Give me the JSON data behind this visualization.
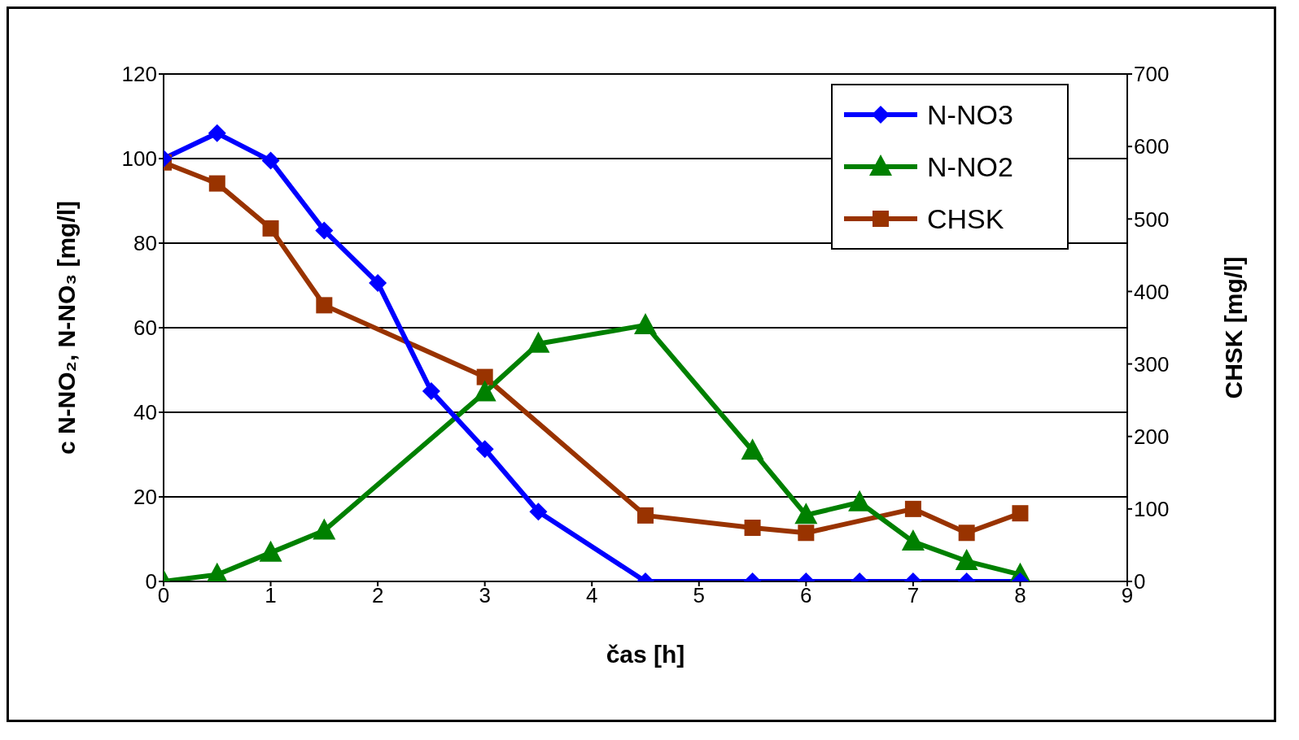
{
  "chart_data": {
    "type": "line",
    "xlabel": "čas [h]",
    "ylabel": "c N-NO₂, N-NO₃  [mg/l]",
    "y2label": "CHSK [mg/l]",
    "xlim": [
      0,
      9
    ],
    "xticks": [
      0,
      1,
      2,
      3,
      4,
      5,
      6,
      7,
      8,
      9
    ],
    "ylim": [
      0,
      120
    ],
    "yticks": [
      0,
      20,
      40,
      60,
      80,
      100,
      120
    ],
    "y2lim": [
      0,
      700
    ],
    "y2ticks": [
      0,
      100,
      200,
      300,
      400,
      500,
      600,
      700
    ],
    "grid": "y",
    "legend": "top right",
    "series": [
      {
        "name": "N-NO3",
        "color": "#0000ff",
        "marker": "diamond",
        "x": [
          0,
          0.5,
          1,
          1.5,
          2,
          2.5,
          3,
          3.5,
          4.5,
          5.5,
          6,
          6.5,
          7,
          7.5,
          8
        ],
        "values": [
          100,
          106,
          99.5,
          83,
          70.6,
          45,
          31.3,
          16.5,
          0,
          0,
          0,
          0,
          0,
          0,
          0
        ]
      },
      {
        "name": "N-NO2",
        "color": "#008000",
        "marker": "triangle",
        "x": [
          0,
          0.5,
          1,
          1.5,
          3,
          3.5,
          4.5,
          5.5,
          6,
          6.5,
          7,
          7.5,
          8
        ],
        "values": [
          0,
          1.6,
          6.8,
          12,
          44.7,
          56.2,
          60.6,
          30.9,
          15.7,
          18.7,
          9.4,
          4.8,
          1.6
        ]
      },
      {
        "name": "CHSK",
        "color": "#993300",
        "marker": "square",
        "axis": "y2",
        "x": [
          0,
          0.5,
          1,
          1.5,
          3,
          4.5,
          5.5,
          6,
          7,
          7.5,
          8
        ],
        "values": [
          578,
          549,
          487,
          381,
          282,
          91,
          74,
          67,
          100,
          67,
          94
        ]
      }
    ]
  }
}
